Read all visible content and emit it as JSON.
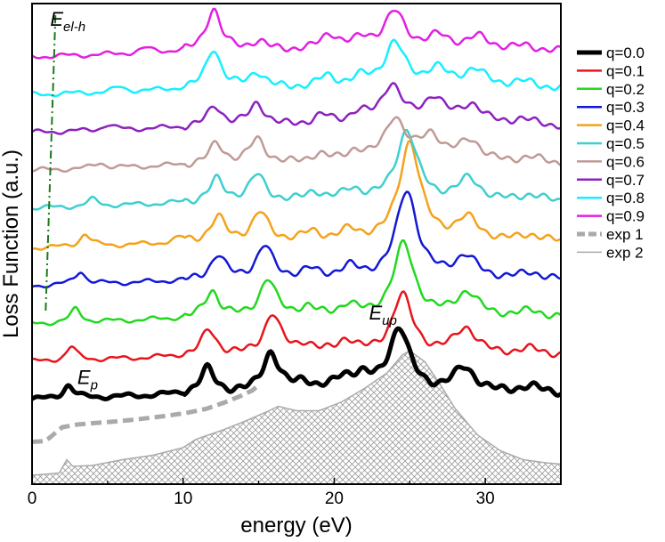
{
  "chart_data": {
    "type": "line",
    "title": "",
    "xlabel": "energy (eV)",
    "ylabel": "Loss Function (a.u.)",
    "xlim": [
      0,
      35
    ],
    "ylim": [
      -0.2,
      10.6
    ],
    "xticks": [
      0,
      10,
      20,
      30
    ],
    "xtick_labels": [
      "0",
      "10",
      "20",
      "30"
    ],
    "yticks_labeled": false,
    "grid": false,
    "legend_position": "right",
    "series": [
      {
        "name": "q=0.0",
        "color": "#000000",
        "width": 5,
        "offset": 1.7,
        "peaks": [
          [
            2.4,
            0.3
          ],
          [
            11.6,
            0.55
          ],
          [
            15.8,
            0.9
          ],
          [
            18.0,
            0.22
          ],
          [
            20.6,
            0.28
          ],
          [
            21.8,
            0.3
          ],
          [
            24.3,
            1.45
          ],
          [
            28.6,
            0.55
          ],
          [
            33.0,
            0.15
          ]
        ]
      },
      {
        "name": "q=0.1",
        "color": "#e8141b",
        "width": 2.5,
        "offset": 2.55,
        "peaks": [
          [
            2.6,
            0.3
          ],
          [
            11.7,
            0.58
          ],
          [
            15.9,
            0.92
          ],
          [
            18.1,
            0.22
          ],
          [
            20.8,
            0.32
          ],
          [
            24.5,
            1.35
          ],
          [
            28.7,
            0.6
          ],
          [
            33.0,
            0.15
          ]
        ]
      },
      {
        "name": "q=0.2",
        "color": "#21d91f",
        "width": 2.5,
        "offset": 3.4,
        "peaks": [
          [
            2.9,
            0.3
          ],
          [
            11.9,
            0.6
          ],
          [
            15.6,
            0.85
          ],
          [
            18.2,
            0.2
          ],
          [
            20.9,
            0.25
          ],
          [
            24.6,
            1.65
          ],
          [
            28.8,
            0.55
          ],
          [
            33.0,
            0.15
          ]
        ]
      },
      {
        "name": "q=0.3",
        "color": "#1318d6",
        "width": 2.5,
        "offset": 4.25,
        "peaks": [
          [
            3.2,
            0.3
          ],
          [
            12.3,
            0.55
          ],
          [
            15.4,
            0.75
          ],
          [
            18.4,
            0.2
          ],
          [
            21.0,
            0.25
          ],
          [
            24.8,
            2.0
          ],
          [
            28.7,
            0.5
          ],
          [
            33.0,
            0.15
          ]
        ]
      },
      {
        "name": "q=0.4",
        "color": "#f4a21b",
        "width": 2.5,
        "offset": 5.1,
        "peaks": [
          [
            3.5,
            0.28
          ],
          [
            9.8,
            0.1
          ],
          [
            12.3,
            0.55
          ],
          [
            15.1,
            0.65
          ],
          [
            18.5,
            0.2
          ],
          [
            21.0,
            0.22
          ],
          [
            25.0,
            2.25
          ],
          [
            28.8,
            0.5
          ],
          [
            33.0,
            0.15
          ]
        ]
      },
      {
        "name": "q=0.5",
        "color": "#3ecfcf",
        "width": 2.5,
        "offset": 6.0,
        "peaks": [
          [
            4.0,
            0.15
          ],
          [
            12.2,
            0.5
          ],
          [
            14.9,
            0.6
          ],
          [
            18.7,
            0.2
          ],
          [
            21.2,
            0.25
          ],
          [
            24.8,
            1.6
          ],
          [
            28.9,
            0.5
          ],
          [
            33.0,
            0.15
          ]
        ]
      },
      {
        "name": "q=0.6",
        "color": "#c09a96",
        "width": 2.5,
        "offset": 6.85,
        "peaks": [
          [
            4.5,
            0.12
          ],
          [
            12.2,
            0.45
          ],
          [
            14.9,
            0.55
          ],
          [
            19.0,
            0.2
          ],
          [
            21.4,
            0.25
          ],
          [
            24.0,
            1.0
          ],
          [
            26.4,
            0.6
          ],
          [
            29.0,
            0.5
          ],
          [
            33.0,
            0.15
          ]
        ]
      },
      {
        "name": "q=0.7",
        "color": "#8d21bf",
        "width": 2.5,
        "offset": 7.7,
        "peaks": [
          [
            5.0,
            0.12
          ],
          [
            12.1,
            0.45
          ],
          [
            14.9,
            0.5
          ],
          [
            19.2,
            0.22
          ],
          [
            21.6,
            0.25
          ],
          [
            23.8,
            0.9
          ],
          [
            26.6,
            0.6
          ],
          [
            29.1,
            0.45
          ],
          [
            32.5,
            0.15
          ]
        ]
      },
      {
        "name": "q=0.8",
        "color": "#14f0ff",
        "width": 2.5,
        "offset": 8.55,
        "peaks": [
          [
            5.8,
            0.1
          ],
          [
            12.0,
            0.9
          ],
          [
            14.9,
            0.35
          ],
          [
            19.5,
            0.25
          ],
          [
            21.8,
            0.2
          ],
          [
            24.0,
            1.0
          ],
          [
            26.8,
            0.4
          ],
          [
            29.3,
            0.4
          ],
          [
            32.5,
            0.15
          ]
        ]
      },
      {
        "name": "q=0.9",
        "color": "#e31fe3",
        "width": 2.5,
        "offset": 9.4,
        "peaks": [
          [
            7.5,
            0.1
          ],
          [
            12.0,
            0.95
          ],
          [
            15.0,
            0.2
          ],
          [
            19.7,
            0.35
          ],
          [
            21.9,
            0.22
          ],
          [
            24.0,
            0.85
          ],
          [
            26.9,
            0.3
          ],
          [
            29.5,
            0.3
          ],
          [
            32.5,
            0.1
          ]
        ]
      },
      {
        "name": "exp 1",
        "color": "#aaaaaa",
        "width": 5,
        "dashed": true,
        "points": [
          [
            0,
            0.75
          ],
          [
            0.9,
            0.77
          ],
          [
            2.0,
            1.08
          ],
          [
            3.0,
            1.14
          ],
          [
            4.0,
            1.17
          ],
          [
            5.2,
            1.2
          ],
          [
            6.5,
            1.24
          ],
          [
            7.8,
            1.29
          ],
          [
            9.0,
            1.34
          ],
          [
            10.2,
            1.4
          ],
          [
            11.5,
            1.49
          ],
          [
            12.7,
            1.63
          ],
          [
            13.8,
            1.78
          ],
          [
            14.6,
            1.91
          ],
          [
            15.0,
            2.03
          ]
        ]
      },
      {
        "name": "exp 2",
        "color": "#aaaaaa",
        "width": 1.5,
        "hatched": true,
        "points": [
          [
            0,
            0.0
          ],
          [
            1.8,
            0.05
          ],
          [
            2.3,
            0.35
          ],
          [
            2.7,
            0.2
          ],
          [
            4.0,
            0.22
          ],
          [
            6.0,
            0.35
          ],
          [
            8.0,
            0.45
          ],
          [
            10.0,
            0.62
          ],
          [
            10.8,
            0.8
          ],
          [
            11.2,
            0.85
          ],
          [
            12.5,
            1.0
          ],
          [
            14.0,
            1.2
          ],
          [
            15.5,
            1.42
          ],
          [
            16.3,
            1.55
          ],
          [
            17.5,
            1.45
          ],
          [
            19.0,
            1.45
          ],
          [
            20.5,
            1.65
          ],
          [
            22.0,
            1.95
          ],
          [
            23.5,
            2.3
          ],
          [
            24.5,
            2.7
          ],
          [
            25.0,
            2.8
          ],
          [
            26.0,
            2.55
          ],
          [
            27.0,
            2.05
          ],
          [
            28.0,
            1.5
          ],
          [
            29.5,
            0.9
          ],
          [
            31.0,
            0.55
          ],
          [
            32.5,
            0.35
          ],
          [
            34.0,
            0.28
          ],
          [
            35.0,
            0.25
          ]
        ]
      }
    ],
    "annotations": [
      {
        "text": "E",
        "subscript": "el-h",
        "x": 1.2,
        "y": 10.1
      },
      {
        "text": "E",
        "subscript": "p",
        "x": 3.0,
        "y": 2.05
      },
      {
        "text": "E",
        "subscript": "up",
        "x": 22.3,
        "y": 3.5
      }
    ],
    "guide_line": {
      "name": "E_el-h dispersion",
      "color": "#1a7a1a",
      "points": [
        [
          0.9,
          3.7
        ],
        [
          1.55,
          10.35
        ]
      ]
    }
  }
}
